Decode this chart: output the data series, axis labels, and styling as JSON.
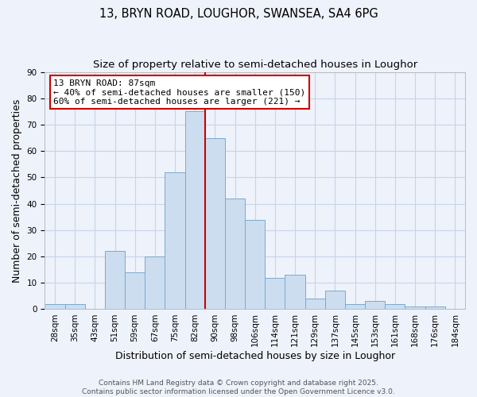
{
  "title": "13, BRYN ROAD, LOUGHOR, SWANSEA, SA4 6PG",
  "subtitle": "Size of property relative to semi-detached houses in Loughor",
  "xlabel": "Distribution of semi-detached houses by size in Loughor",
  "ylabel": "Number of semi-detached properties",
  "bin_labels": [
    "28sqm",
    "35sqm",
    "43sqm",
    "51sqm",
    "59sqm",
    "67sqm",
    "75sqm",
    "82sqm",
    "90sqm",
    "98sqm",
    "106sqm",
    "114sqm",
    "121sqm",
    "129sqm",
    "137sqm",
    "145sqm",
    "153sqm",
    "161sqm",
    "168sqm",
    "176sqm",
    "184sqm"
  ],
  "bar_values": [
    2,
    2,
    0,
    22,
    14,
    20,
    52,
    75,
    65,
    42,
    34,
    12,
    13,
    4,
    7,
    2,
    3,
    2,
    1,
    1,
    0
  ],
  "bar_color": "#ccddf0",
  "bar_edge_color": "#7aaacc",
  "bg_color": "#eef2fb",
  "grid_color": "#c8d4e8",
  "vline_x_index": 7.5,
  "vline_color": "#cc0000",
  "annotation_title": "13 BRYN ROAD: 87sqm",
  "annotation_line2": "← 40% of semi-detached houses are smaller (150)",
  "annotation_line3": "60% of semi-detached houses are larger (221) →",
  "annotation_box_color": "#cc0000",
  "ylim": [
    0,
    90
  ],
  "yticks": [
    0,
    10,
    20,
    30,
    40,
    50,
    60,
    70,
    80,
    90
  ],
  "footer_line1": "Contains HM Land Registry data © Crown copyright and database right 2025.",
  "footer_line2": "Contains public sector information licensed under the Open Government Licence v3.0.",
  "title_fontsize": 10.5,
  "subtitle_fontsize": 9.5,
  "axis_label_fontsize": 9,
  "tick_fontsize": 7.5,
  "annotation_fontsize": 8,
  "footer_fontsize": 6.5
}
